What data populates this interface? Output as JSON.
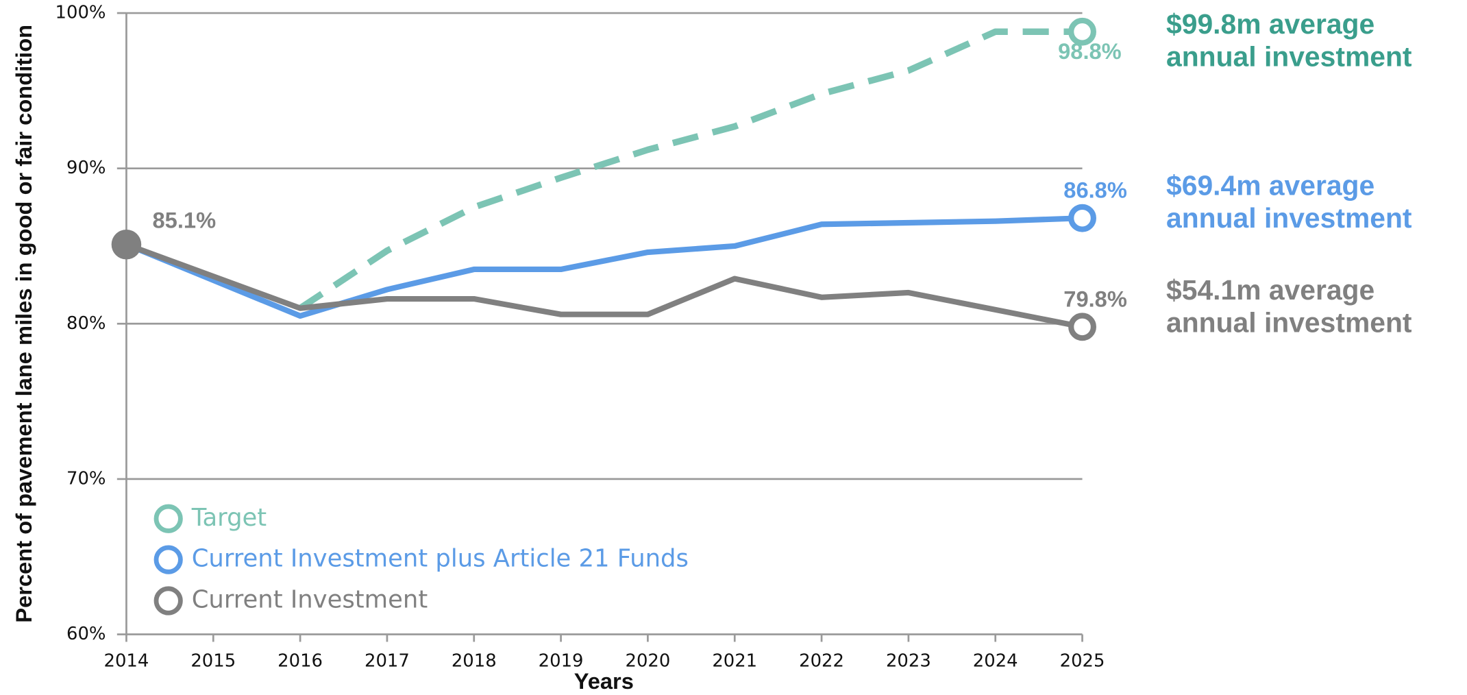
{
  "chart_data": {
    "type": "line",
    "x_label": "Years",
    "y_label": "Percent of pavement lane miles in good or fair condition",
    "x": [
      2014,
      2015,
      2016,
      2017,
      2018,
      2019,
      2020,
      2021,
      2022,
      2023,
      2024,
      2025
    ],
    "xlim": [
      2014,
      2025
    ],
    "xticks": [
      2014,
      2015,
      2016,
      2017,
      2018,
      2019,
      2020,
      2021,
      2022,
      2023,
      2024,
      2025
    ],
    "ylim": [
      60,
      100
    ],
    "yticks": [
      {
        "value": 60,
        "label": "60%"
      },
      {
        "value": 70,
        "label": "70%"
      },
      {
        "value": 80,
        "label": "80%"
      },
      {
        "value": 90,
        "label": "90%"
      },
      {
        "value": 100,
        "label": "100%"
      }
    ],
    "grid": true,
    "series": [
      {
        "name": "Target",
        "color": "#7cc4b4",
        "dashed": true,
        "values": [
          null,
          null,
          81.0,
          84.7,
          87.5,
          89.4,
          91.2,
          92.7,
          94.8,
          96.3,
          98.8,
          98.8
        ],
        "value_labels": [
          null,
          null,
          null,
          null,
          null,
          null,
          null,
          null,
          null,
          null,
          null,
          "98.8%"
        ]
      },
      {
        "name": "Current Investment plus Article 21 Funds",
        "color": "#5b9be6",
        "values": [
          85.1,
          82.8,
          80.5,
          82.2,
          83.5,
          83.5,
          84.6,
          85.0,
          86.4,
          86.5,
          86.6,
          86.8
        ],
        "value_labels": [
          null,
          null,
          null,
          null,
          null,
          null,
          null,
          null,
          null,
          null,
          null,
          "86.8%"
        ]
      },
      {
        "name": "Current Investment",
        "color": "#808080",
        "values": [
          85.1,
          83.05,
          81.0,
          81.6,
          81.6,
          80.6,
          80.6,
          82.9,
          81.7,
          82.0,
          80.9,
          79.8
        ],
        "value_labels": [
          "85.1%",
          null,
          null,
          null,
          null,
          null,
          null,
          null,
          null,
          null,
          null,
          "79.8%"
        ]
      }
    ],
    "annotations": [
      {
        "lines": [
          "$99.8m average",
          "annual investment"
        ],
        "color": "#3a9e8c"
      },
      {
        "lines": [
          "$69.4m average",
          "annual investment"
        ],
        "color": "#5b9be6"
      },
      {
        "lines": [
          "$54.1m average",
          "annual investment"
        ],
        "color": "#808080"
      }
    ]
  }
}
